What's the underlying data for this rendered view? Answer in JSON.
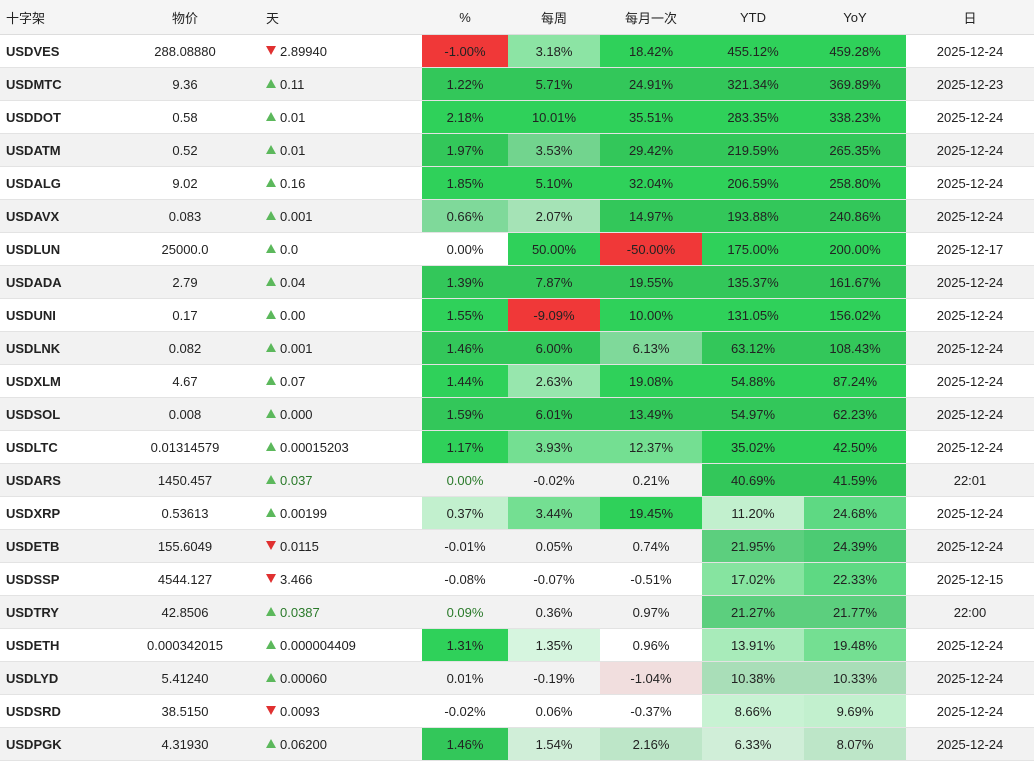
{
  "headers": [
    "十字架",
    "物价",
    "天",
    "%",
    "每周",
    "每月一次",
    "YTD",
    "YoY",
    "日"
  ],
  "rows": [
    {
      "symbol": "USDVES",
      "price": "288.08880",
      "dir": "down",
      "day": "2.89940",
      "cells": [
        "-1.00%",
        "3.18%",
        "18.42%",
        "455.12%",
        "459.28%"
      ],
      "bgs": [
        "#f03838",
        "#8ce4a4",
        "#2fd15a",
        "#2fd15a",
        "#2fd15a"
      ],
      "date": "2025-12-24",
      "alt": false,
      "green": false
    },
    {
      "symbol": "USDMTC",
      "price": "9.36",
      "dir": "up",
      "day": "0.11",
      "cells": [
        "1.22%",
        "5.71%",
        "24.91%",
        "321.34%",
        "369.89%"
      ],
      "bgs": [
        "#33c75a",
        "#33c75a",
        "#33c75a",
        "#33c75a",
        "#33c75a"
      ],
      "date": "2025-12-23",
      "alt": true,
      "green": false
    },
    {
      "symbol": "USDDOT",
      "price": "0.58",
      "dir": "up",
      "day": "0.01",
      "cells": [
        "2.18%",
        "10.01%",
        "35.51%",
        "283.35%",
        "338.23%"
      ],
      "bgs": [
        "#2fd15a",
        "#2fd15a",
        "#2fd15a",
        "#2fd15a",
        "#2fd15a"
      ],
      "date": "2025-12-24",
      "alt": false,
      "green": false
    },
    {
      "symbol": "USDATM",
      "price": "0.52",
      "dir": "up",
      "day": "0.01",
      "cells": [
        "1.97%",
        "3.53%",
        "29.42%",
        "219.59%",
        "265.35%"
      ],
      "bgs": [
        "#33c75a",
        "#72d48e",
        "#33c75a",
        "#33c75a",
        "#33c75a"
      ],
      "date": "2025-12-24",
      "alt": true,
      "green": false
    },
    {
      "symbol": "USDALG",
      "price": "9.02",
      "dir": "up",
      "day": "0.16",
      "cells": [
        "1.85%",
        "5.10%",
        "32.04%",
        "206.59%",
        "258.80%"
      ],
      "bgs": [
        "#2fd15a",
        "#2fd15a",
        "#2fd15a",
        "#2fd15a",
        "#2fd15a"
      ],
      "date": "2025-12-24",
      "alt": false,
      "green": false
    },
    {
      "symbol": "USDAVX",
      "price": "0.083",
      "dir": "up",
      "day": "0.001",
      "cells": [
        "0.66%",
        "2.07%",
        "14.97%",
        "193.88%",
        "240.86%"
      ],
      "bgs": [
        "#7fd99a",
        "#a5e3b6",
        "#33c75a",
        "#33c75a",
        "#33c75a"
      ],
      "date": "2025-12-24",
      "alt": true,
      "green": false
    },
    {
      "symbol": "USDLUN",
      "price": "25000.0",
      "dir": "up",
      "day": "0.0",
      "cells": [
        "0.00%",
        "50.00%",
        "-50.00%",
        "175.00%",
        "200.00%"
      ],
      "bgs": [
        "#ffffff",
        "#2fd15a",
        "#f03838",
        "#2fd15a",
        "#2fd15a"
      ],
      "date": "2025-12-17",
      "alt": false,
      "green": false
    },
    {
      "symbol": "USDADA",
      "price": "2.79",
      "dir": "up",
      "day": "0.04",
      "cells": [
        "1.39%",
        "7.87%",
        "19.55%",
        "135.37%",
        "161.67%"
      ],
      "bgs": [
        "#33c75a",
        "#33c75a",
        "#33c75a",
        "#33c75a",
        "#33c75a"
      ],
      "date": "2025-12-24",
      "alt": true,
      "green": false
    },
    {
      "symbol": "USDUNI",
      "price": "0.17",
      "dir": "up",
      "day": "0.00",
      "cells": [
        "1.55%",
        "-9.09%",
        "10.00%",
        "131.05%",
        "156.02%"
      ],
      "bgs": [
        "#2fd15a",
        "#f03838",
        "#2fd15a",
        "#2fd15a",
        "#2fd15a"
      ],
      "date": "2025-12-24",
      "alt": false,
      "green": false
    },
    {
      "symbol": "USDLNK",
      "price": "0.082",
      "dir": "up",
      "day": "0.001",
      "cells": [
        "1.46%",
        "6.00%",
        "6.13%",
        "63.12%",
        "108.43%"
      ],
      "bgs": [
        "#33c75a",
        "#33c75a",
        "#7fd99a",
        "#33c75a",
        "#33c75a"
      ],
      "date": "2025-12-24",
      "alt": true,
      "green": false
    },
    {
      "symbol": "USDXLM",
      "price": "4.67",
      "dir": "up",
      "day": "0.07",
      "cells": [
        "1.44%",
        "2.63%",
        "19.08%",
        "54.88%",
        "87.24%"
      ],
      "bgs": [
        "#2fd15a",
        "#97e6ad",
        "#2fd15a",
        "#2fd15a",
        "#2fd15a"
      ],
      "date": "2025-12-24",
      "alt": false,
      "green": false
    },
    {
      "symbol": "USDSOL",
      "price": "0.008",
      "dir": "up",
      "day": "0.000",
      "cells": [
        "1.59%",
        "6.01%",
        "13.49%",
        "54.97%",
        "62.23%"
      ],
      "bgs": [
        "#33c75a",
        "#33c75a",
        "#33c75a",
        "#33c75a",
        "#33c75a"
      ],
      "date": "2025-12-24",
      "alt": true,
      "green": false
    },
    {
      "symbol": "USDLTC",
      "price": "0.01314579",
      "dir": "up",
      "day": "0.00015203",
      "cells": [
        "1.17%",
        "3.93%",
        "12.37%",
        "35.02%",
        "42.50%"
      ],
      "bgs": [
        "#2fd15a",
        "#74df92",
        "#74df92",
        "#2fd15a",
        "#2fd15a"
      ],
      "date": "2025-12-24",
      "alt": false,
      "green": false
    },
    {
      "symbol": "USDARS",
      "price": "1450.457",
      "dir": "up",
      "day": "0.037",
      "cells": [
        "0.00%",
        "-0.02%",
        "0.21%",
        "40.69%",
        "41.59%"
      ],
      "bgs": [
        "#f2f2f2",
        "#f2f2f2",
        "#f2f2f2",
        "#33c75a",
        "#33c75a"
      ],
      "date": "22:01",
      "alt": true,
      "green": true
    },
    {
      "symbol": "USDXRP",
      "price": "0.53613",
      "dir": "up",
      "day": "0.00199",
      "cells": [
        "0.37%",
        "3.44%",
        "19.45%",
        "11.20%",
        "24.68%"
      ],
      "bgs": [
        "#c2f0ce",
        "#74df92",
        "#2fd15a",
        "#c2f0ce",
        "#5ed983"
      ],
      "date": "2025-12-24",
      "alt": false,
      "green": false
    },
    {
      "symbol": "USDETB",
      "price": "155.6049",
      "dir": "down",
      "day": "0.0115",
      "cells": [
        "-0.01%",
        "0.05%",
        "0.74%",
        "21.95%",
        "24.39%"
      ],
      "bgs": [
        "#f2f2f2",
        "#f2f2f2",
        "#f2f2f2",
        "#5ccf7e",
        "#4ccb73"
      ],
      "date": "2025-12-24",
      "alt": true,
      "green": false
    },
    {
      "symbol": "USDSSP",
      "price": "4544.127",
      "dir": "down",
      "day": "3.466",
      "cells": [
        "-0.08%",
        "-0.07%",
        "-0.51%",
        "17.02%",
        "22.33%"
      ],
      "bgs": [
        "#ffffff",
        "#ffffff",
        "#ffffff",
        "#86e4a0",
        "#5ed983"
      ],
      "date": "2025-12-15",
      "alt": false,
      "green": false
    },
    {
      "symbol": "USDTRY",
      "price": "42.8506",
      "dir": "up",
      "day": "0.0387",
      "cells": [
        "0.09%",
        "0.36%",
        "0.97%",
        "21.27%",
        "21.77%"
      ],
      "bgs": [
        "#f2f2f2",
        "#f2f2f2",
        "#f2f2f2",
        "#5ccf7e",
        "#5ccf7e"
      ],
      "date": "22:00",
      "alt": true,
      "green": true
    },
    {
      "symbol": "USDETH",
      "price": "0.000342015",
      "dir": "up",
      "day": "0.000004409",
      "cells": [
        "1.31%",
        "1.35%",
        "0.96%",
        "13.91%",
        "19.48%"
      ],
      "bgs": [
        "#2fd15a",
        "#d6f5df",
        "#ffffff",
        "#a8ebba",
        "#74df92"
      ],
      "date": "2025-12-24",
      "alt": false,
      "green": false
    },
    {
      "symbol": "USDLYD",
      "price": "5.41240",
      "dir": "up",
      "day": "0.00060",
      "cells": [
        "0.01%",
        "-0.19%",
        "-1.04%",
        "10.38%",
        "10.33%"
      ],
      "bgs": [
        "#f2f2f2",
        "#f2f2f2",
        "#f1dede",
        "#a9deb8",
        "#a9deb8"
      ],
      "date": "2025-12-24",
      "alt": true,
      "green": false
    },
    {
      "symbol": "USDSRD",
      "price": "38.5150",
      "dir": "down",
      "day": "0.0093",
      "cells": [
        "-0.02%",
        "0.06%",
        "-0.37%",
        "8.66%",
        "9.69%"
      ],
      "bgs": [
        "#ffffff",
        "#ffffff",
        "#ffffff",
        "#c8f2d3",
        "#c2f0ce"
      ],
      "date": "2025-12-24",
      "alt": false,
      "green": false
    },
    {
      "symbol": "USDPGK",
      "price": "4.31930",
      "dir": "up",
      "day": "0.06200",
      "cells": [
        "1.46%",
        "1.54%",
        "2.16%",
        "6.33%",
        "8.07%"
      ],
      "bgs": [
        "#33c75a",
        "#d0eed8",
        "#bde6c8",
        "#d0eed8",
        "#bde6c8"
      ],
      "date": "2025-12-24",
      "alt": true,
      "green": false
    }
  ]
}
